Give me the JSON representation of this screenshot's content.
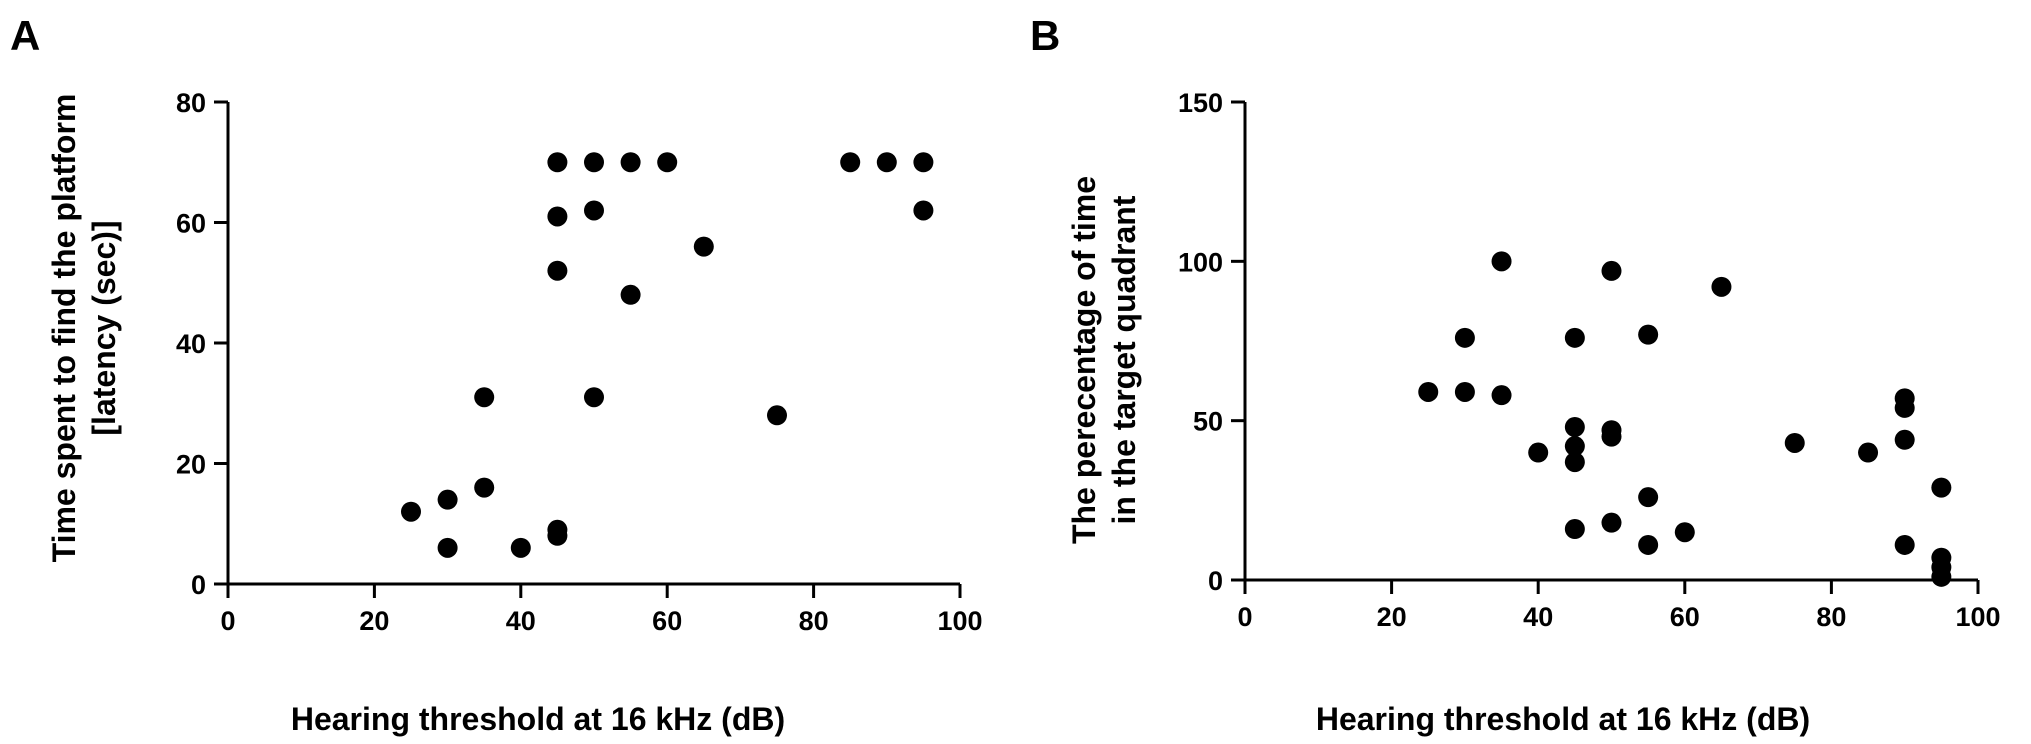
{
  "chart_data": [
    {
      "type": "scatter",
      "panel": "A",
      "title": "",
      "xlabel": "Hearing threshold at 16 kHz (dB)",
      "ylabel_lines": [
        "Time spent to find the platform",
        "[latency (sec)]"
      ],
      "xlim": [
        0,
        100
      ],
      "ylim": [
        0,
        80
      ],
      "xticks": [
        0,
        20,
        40,
        60,
        80,
        100
      ],
      "yticks": [
        0,
        20,
        40,
        60,
        80
      ],
      "grid": false,
      "color": "#000000",
      "points": [
        {
          "x": 25,
          "y": 12
        },
        {
          "x": 30,
          "y": 14
        },
        {
          "x": 30,
          "y": 6
        },
        {
          "x": 35,
          "y": 31
        },
        {
          "x": 35,
          "y": 16
        },
        {
          "x": 40,
          "y": 6
        },
        {
          "x": 45,
          "y": 70
        },
        {
          "x": 45,
          "y": 61
        },
        {
          "x": 45,
          "y": 52
        },
        {
          "x": 45,
          "y": 9
        },
        {
          "x": 45,
          "y": 8
        },
        {
          "x": 50,
          "y": 70
        },
        {
          "x": 50,
          "y": 62
        },
        {
          "x": 50,
          "y": 31
        },
        {
          "x": 55,
          "y": 70
        },
        {
          "x": 55,
          "y": 48
        },
        {
          "x": 60,
          "y": 70
        },
        {
          "x": 65,
          "y": 56
        },
        {
          "x": 75,
          "y": 28
        },
        {
          "x": 85,
          "y": 70
        },
        {
          "x": 90,
          "y": 70
        },
        {
          "x": 95,
          "y": 70
        },
        {
          "x": 95,
          "y": 62
        }
      ]
    },
    {
      "type": "scatter",
      "panel": "B",
      "title": "",
      "xlabel": "Hearing threshold at 16 kHz (dB)",
      "ylabel_lines": [
        "The perecentage of time",
        "in the target quadrant"
      ],
      "xlim": [
        0,
        100
      ],
      "ylim": [
        0,
        150
      ],
      "xticks": [
        0,
        20,
        40,
        60,
        80,
        100
      ],
      "yticks": [
        0,
        50,
        100,
        150
      ],
      "grid": false,
      "color": "#000000",
      "points": [
        {
          "x": 25,
          "y": 59
        },
        {
          "x": 30,
          "y": 76
        },
        {
          "x": 30,
          "y": 59
        },
        {
          "x": 35,
          "y": 100
        },
        {
          "x": 35,
          "y": 58
        },
        {
          "x": 40,
          "y": 40
        },
        {
          "x": 45,
          "y": 76
        },
        {
          "x": 45,
          "y": 48
        },
        {
          "x": 45,
          "y": 42
        },
        {
          "x": 45,
          "y": 37
        },
        {
          "x": 45,
          "y": 16
        },
        {
          "x": 50,
          "y": 97
        },
        {
          "x": 50,
          "y": 47
        },
        {
          "x": 50,
          "y": 45
        },
        {
          "x": 50,
          "y": 18
        },
        {
          "x": 55,
          "y": 77
        },
        {
          "x": 55,
          "y": 26
        },
        {
          "x": 55,
          "y": 11
        },
        {
          "x": 60,
          "y": 15
        },
        {
          "x": 65,
          "y": 92
        },
        {
          "x": 75,
          "y": 43
        },
        {
          "x": 85,
          "y": 40
        },
        {
          "x": 90,
          "y": 57
        },
        {
          "x": 90,
          "y": 54
        },
        {
          "x": 90,
          "y": 44
        },
        {
          "x": 90,
          "y": 11
        },
        {
          "x": 95,
          "y": 29
        },
        {
          "x": 95,
          "y": 7
        },
        {
          "x": 95,
          "y": 4
        },
        {
          "x": 95,
          "y": 1
        }
      ]
    }
  ]
}
